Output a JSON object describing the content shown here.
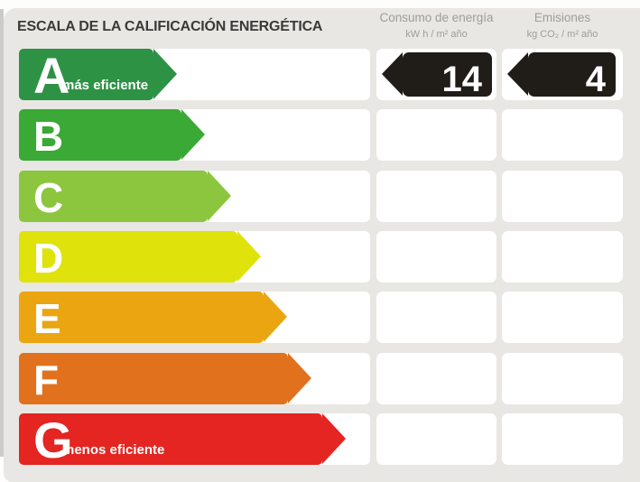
{
  "header": {
    "title": "ESCALA DE LA CALIFICACIÓN ENERGÉTICA",
    "columns": [
      {
        "label": "Consumo de energía",
        "unit": "kW h / m² año"
      },
      {
        "label": "Emisiones",
        "unit": "kg CO₂ / m² año"
      }
    ]
  },
  "scale": {
    "ratings": [
      {
        "letter": "A",
        "label": "más eficiente",
        "color": "#2e9245",
        "body_width": 149
      },
      {
        "letter": "B",
        "label": "",
        "color": "#3aa935",
        "body_width": 180
      },
      {
        "letter": "C",
        "label": "",
        "color": "#8cc63f",
        "body_width": 209
      },
      {
        "letter": "D",
        "label": "",
        "color": "#e0e20c",
        "body_width": 242
      },
      {
        "letter": "E",
        "label": "",
        "color": "#eaa511",
        "body_width": 271
      },
      {
        "letter": "F",
        "label": "",
        "color": "#e1711d",
        "body_width": 298
      },
      {
        "letter": "G",
        "label": "menos eficiente",
        "color": "#e42521",
        "body_width": 336
      }
    ],
    "selected": {
      "letter": "A",
      "consumo": "14",
      "emisiones": "4"
    },
    "badge_color": "#201c18"
  },
  "colors": {
    "panel_bg": "#e8e7e4",
    "cell_bg": "#ffffff",
    "title_text": "#3b3a37",
    "header_text": "#9d9d9a"
  },
  "chart_data": {
    "type": "bar",
    "title": "ESCALA DE LA CALIFICACIÓN ENERGÉTICA",
    "categories": [
      "A",
      "B",
      "C",
      "D",
      "E",
      "F",
      "G"
    ],
    "series": [
      {
        "name": "arrow_length_px",
        "values": [
          175,
          206,
          235,
          268,
          297,
          324,
          362
        ]
      }
    ],
    "annotations": {
      "assigned_rating": "A",
      "consumo_de_energia_kwh_m2_ano": 14,
      "emisiones_kg_co2_m2_ano": 4,
      "top_label": "más eficiente",
      "bottom_label": "menos eficiente"
    },
    "xlabel": "",
    "ylabel": "",
    "legend_position": "none",
    "grid": false
  }
}
